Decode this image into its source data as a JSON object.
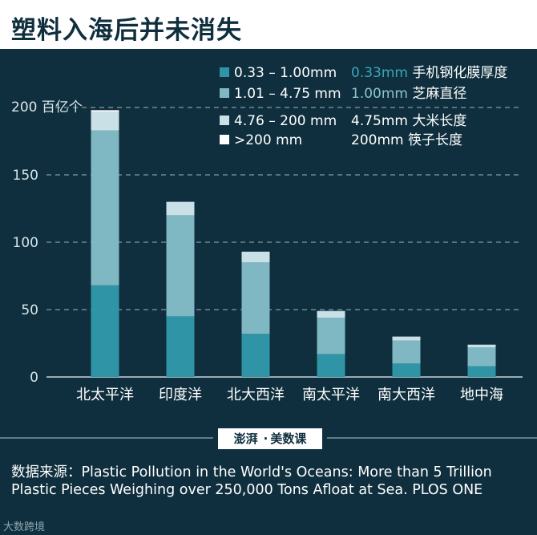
{
  "header": {
    "title": "塑料入海后并未消失"
  },
  "chart_data": {
    "type": "bar",
    "stacked": true,
    "ylabel": "",
    "y_unit_label": "200 百亿个",
    "ylim": [
      0,
      200
    ],
    "yticks": [
      0,
      50,
      100,
      150,
      200
    ],
    "ytick_labels": [
      "0",
      "50",
      "100",
      "150",
      ""
    ],
    "grid": true,
    "categories": [
      "北太平洋",
      "印度洋",
      "北大西洋",
      "南太平洋",
      "南大西洋",
      "地中海"
    ],
    "series": [
      {
        "name": "0.33 – 1.00mm",
        "example": "0.33mm 手机钢化膜厚度",
        "color": "#2f95a6",
        "values": [
          68,
          45,
          32,
          17,
          10,
          8
        ]
      },
      {
        "name": "1.01 – 4.75 mm",
        "example": "1.00mm 芝麻直径",
        "color": "#7fb7c2",
        "values": [
          115,
          75,
          53,
          27,
          17,
          14
        ]
      },
      {
        "name": "4.76 – 200 mm",
        "example": "4.75mm 大米长度",
        "color": "#c9e1e6",
        "values": [
          14,
          10,
          8,
          5,
          3,
          2
        ]
      },
      {
        "name": ">200 mm",
        "example": "200mm 筷子长度",
        "color": "#ffffff",
        "values": [
          1,
          0,
          0,
          0,
          0,
          0
        ]
      }
    ],
    "legend_placement": "top-right"
  },
  "brand": {
    "logo": "澎湃",
    "sep": "·",
    "name": "美数课"
  },
  "source": {
    "text": "数据来源：Plastic Pollution in the World's Oceans: More than 5 Trillion Plastic Pieces Weighing over 250,000 Tons Afloat at Sea. PLOS ONE"
  },
  "watermark": {
    "text": "大数跨境"
  }
}
